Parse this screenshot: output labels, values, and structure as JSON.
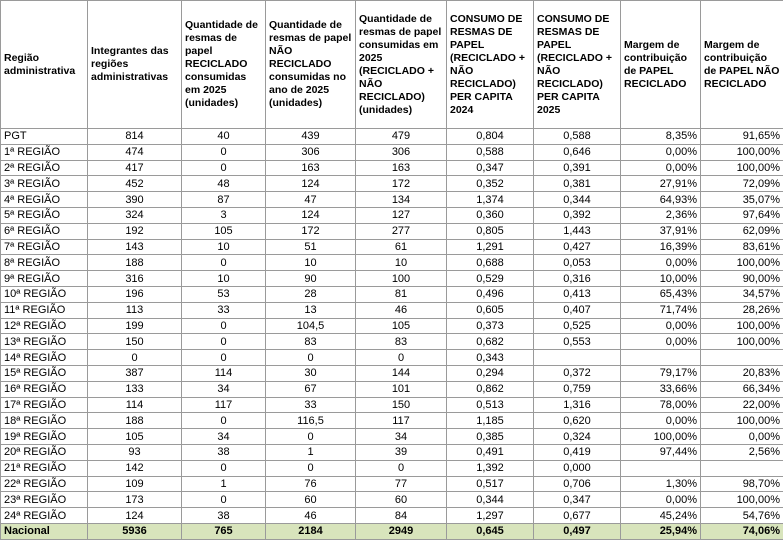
{
  "table": {
    "header": [
      "Região administrativa",
      "Integrantes das regiões administrativas",
      "Quantidade de resmas de papel RECICLADO consumidas em 2025 (unidades)",
      "Quantidade de resmas de papel NÃO RECICLADO consumidas no ano de 2025 (unidades)",
      "Quantidade de resmas de papel consumidas em 2025 (RECICLADO + NÃO RECICLADO) (unidades)",
      "CONSUMO DE RESMAS DE PAPEL (RECICLADO + NÃO RECICLADO) PER CAPITA 2024",
      "CONSUMO DE RESMAS DE PAPEL (RECICLADO + NÃO RECICLADO) PER CAPITA 2025",
      "Margem de contribuição de PAPEL RECICLADO",
      "Margem de contribuição de PAPEL NÃO RECICLADO"
    ],
    "rows": [
      [
        "PGT",
        "814",
        "40",
        "439",
        "479",
        "0,804",
        "0,588",
        "8,35%",
        "91,65%"
      ],
      [
        "1ª REGIÃO",
        "474",
        "0",
        "306",
        "306",
        "0,588",
        "0,646",
        "0,00%",
        "100,00%"
      ],
      [
        "2ª REGIÃO",
        "417",
        "0",
        "163",
        "163",
        "0,347",
        "0,391",
        "0,00%",
        "100,00%"
      ],
      [
        "3ª REGIÃO",
        "452",
        "48",
        "124",
        "172",
        "0,352",
        "0,381",
        "27,91%",
        "72,09%"
      ],
      [
        "4ª REGIÃO",
        "390",
        "87",
        "47",
        "134",
        "1,374",
        "0,344",
        "64,93%",
        "35,07%"
      ],
      [
        "5ª REGIÃO",
        "324",
        "3",
        "124",
        "127",
        "0,360",
        "0,392",
        "2,36%",
        "97,64%"
      ],
      [
        "6ª REGIÃO",
        "192",
        "105",
        "172",
        "277",
        "0,805",
        "1,443",
        "37,91%",
        "62,09%"
      ],
      [
        "7ª REGIÃO",
        "143",
        "10",
        "51",
        "61",
        "1,291",
        "0,427",
        "16,39%",
        "83,61%"
      ],
      [
        "8ª REGIÃO",
        "188",
        "0",
        "10",
        "10",
        "0,688",
        "0,053",
        "0,00%",
        "100,00%"
      ],
      [
        "9ª REGIÃO",
        "316",
        "10",
        "90",
        "100",
        "0,529",
        "0,316",
        "10,00%",
        "90,00%"
      ],
      [
        "10ª REGIÃO",
        "196",
        "53",
        "28",
        "81",
        "0,496",
        "0,413",
        "65,43%",
        "34,57%"
      ],
      [
        "11ª REGIÃO",
        "113",
        "33",
        "13",
        "46",
        "0,605",
        "0,407",
        "71,74%",
        "28,26%"
      ],
      [
        "12ª REGIÃO",
        "199",
        "0",
        "104,5",
        "105",
        "0,373",
        "0,525",
        "0,00%",
        "100,00%"
      ],
      [
        "13ª REGIÃO",
        "150",
        "0",
        "83",
        "83",
        "0,682",
        "0,553",
        "0,00%",
        "100,00%"
      ],
      [
        "14ª REGIÃO",
        "0",
        "0",
        "0",
        "0",
        "0,343",
        null,
        null,
        null
      ],
      [
        "15ª REGIÃO",
        "387",
        "114",
        "30",
        "144",
        "0,294",
        "0,372",
        "79,17%",
        "20,83%"
      ],
      [
        "16ª REGIÃO",
        "133",
        "34",
        "67",
        "101",
        "0,862",
        "0,759",
        "33,66%",
        "66,34%"
      ],
      [
        "17ª REGIÃO",
        "114",
        "117",
        "33",
        "150",
        "0,513",
        "1,316",
        "78,00%",
        "22,00%"
      ],
      [
        "18ª REGIÃO",
        "188",
        "0",
        "116,5",
        "117",
        "1,185",
        "0,620",
        "0,00%",
        "100,00%"
      ],
      [
        "19ª REGIÃO",
        "105",
        "34",
        "0",
        "34",
        "0,385",
        "0,324",
        "100,00%",
        "0,00%"
      ],
      [
        "20ª REGIÃO",
        "93",
        "38",
        "1",
        "39",
        "0,491",
        "0,419",
        "97,44%",
        "2,56%"
      ],
      [
        "21ª REGIÃO",
        "142",
        "0",
        "0",
        "0",
        "1,392",
        "0,000",
        null,
        null
      ],
      [
        "22ª REGIÃO",
        "109",
        "1",
        "76",
        "77",
        "0,517",
        "0,706",
        "1,30%",
        "98,70%"
      ],
      [
        "23ª REGIÃO",
        "173",
        "0",
        "60",
        "60",
        "0,344",
        "0,347",
        "0,00%",
        "100,00%"
      ],
      [
        "24ª REGIÃO",
        "124",
        "38",
        "46",
        "84",
        "1,297",
        "0,677",
        "45,24%",
        "54,76%"
      ],
      [
        "Nacional",
        "5936",
        "765",
        "2184",
        "2949",
        "0,645",
        "0,497",
        "25,94%",
        "74,06%"
      ]
    ]
  }
}
